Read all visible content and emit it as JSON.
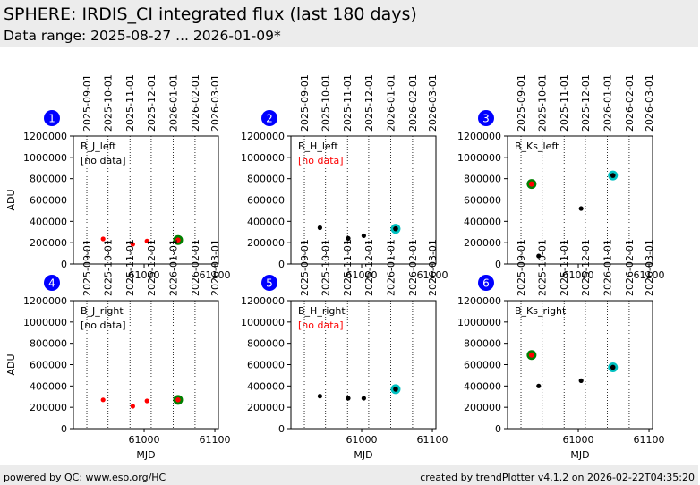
{
  "header": {
    "title": "SPHERE: IRDIS_CI integrated flux (last 180 days)",
    "subtitle": "Data range: 2025-08-27 ... 2026-01-09*"
  },
  "footer": {
    "left": "powered by QC: www.eso.org/HC",
    "right": "created by trendPlotter v4.1.2 on 2026-02-22T04:35:20"
  },
  "colors": {
    "panel_number_bg": "#0000ff",
    "point": "#000000",
    "no_data_point": "#ff0000",
    "first_marker": "#008000",
    "first_marker_inner": "#ff0000",
    "last_marker": "#00c0c0",
    "no_data_text_red": "#ff0000"
  },
  "chart_data": [
    {
      "type": "scatter",
      "panel_number": "1",
      "label": "B_J_left",
      "note": "[no data]",
      "note_color": "black",
      "xlim": [
        60900,
        61105
      ],
      "ylim": [
        0,
        1200000
      ],
      "ylabel": "ADU",
      "xlabel": "",
      "points": [
        [
          60942,
          235000
        ],
        [
          60984,
          185000
        ],
        [
          61004,
          215000
        ]
      ],
      "point_color": "red",
      "first_marker": null,
      "last_marker": [
        61048,
        225000
      ],
      "last_marker_style": "green"
    },
    {
      "type": "scatter",
      "panel_number": "2",
      "label": "B_H_left",
      "note": "[no data]",
      "note_color": "red",
      "xlim": [
        60900,
        61105
      ],
      "ylim": [
        0,
        1200000
      ],
      "ylabel": "",
      "xlabel": "",
      "points": [
        [
          60941,
          340000
        ],
        [
          60981,
          240000
        ],
        [
          61003,
          265000
        ]
      ],
      "point_color": "black",
      "first_marker": null,
      "last_marker": [
        61048,
        330000
      ],
      "last_marker_style": "cyan"
    },
    {
      "type": "scatter",
      "panel_number": "3",
      "label": "B_Ks_left",
      "note": "",
      "note_color": "black",
      "xlim": [
        60900,
        61105
      ],
      "ylim": [
        0,
        1200000
      ],
      "ylabel": "",
      "xlabel": "",
      "points": [
        [
          60944,
          75000
        ],
        [
          61004,
          520000
        ]
      ],
      "point_color": "black",
      "first_marker": [
        60934,
        750000
      ],
      "last_marker": [
        61049,
        830000
      ],
      "last_marker_style": "cyan"
    },
    {
      "type": "scatter",
      "panel_number": "4",
      "label": "B_J_right",
      "note": "[no data]",
      "note_color": "black",
      "xlim": [
        60900,
        61105
      ],
      "ylim": [
        0,
        1200000
      ],
      "ylabel": "ADU",
      "xlabel": "MJD",
      "points": [
        [
          60942,
          270000
        ],
        [
          60984,
          210000
        ],
        [
          61004,
          260000
        ]
      ],
      "point_color": "red",
      "first_marker": null,
      "last_marker": [
        61048,
        270000
      ],
      "last_marker_style": "green"
    },
    {
      "type": "scatter",
      "panel_number": "5",
      "label": "B_H_right",
      "note": "[no data]",
      "note_color": "red",
      "xlim": [
        60900,
        61105
      ],
      "ylim": [
        0,
        1200000
      ],
      "ylabel": "",
      "xlabel": "MJD",
      "points": [
        [
          60941,
          305000
        ],
        [
          60981,
          285000
        ],
        [
          61003,
          285000
        ]
      ],
      "point_color": "black",
      "first_marker": null,
      "last_marker": [
        61048,
        370000
      ],
      "last_marker_style": "cyan"
    },
    {
      "type": "scatter",
      "panel_number": "6",
      "label": "B_Ks_right",
      "note": "",
      "note_color": "black",
      "xlim": [
        60900,
        61105
      ],
      "ylim": [
        0,
        1200000
      ],
      "ylabel": "",
      "xlabel": "MJD",
      "points": [
        [
          60944,
          400000
        ],
        [
          61004,
          450000
        ]
      ],
      "point_color": "black",
      "first_marker": [
        60934,
        690000
      ],
      "last_marker": [
        61049,
        575000
      ],
      "last_marker_style": "cyan"
    }
  ],
  "axes": {
    "x_ticks": [
      61000,
      61100
    ],
    "y_ticks": [
      0,
      200000,
      400000,
      600000,
      800000,
      1000000,
      1200000
    ],
    "date_lines": [
      60919,
      60949,
      60980,
      61010,
      61041,
      61072
    ],
    "date_labels": [
      "2025-09-01",
      "2025-10-01",
      "2025-11-01",
      "2025-12-01",
      "2026-01-01",
      "2026-02-01",
      "2026-03-01"
    ],
    "date_label_mjd": [
      60919,
      60949,
      60980,
      61010,
      61041,
      61072,
      61100
    ]
  }
}
